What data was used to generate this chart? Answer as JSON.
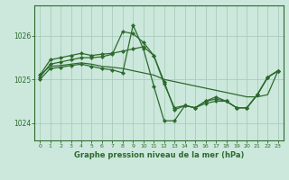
{
  "title": "Graphe pression niveau de la mer (hPa)",
  "bg_color": "#cce8dc",
  "grid_color": "#aaccbb",
  "line_color": "#2d6a2d",
  "xlim": [
    -0.5,
    23.5
  ],
  "ylim": [
    1023.6,
    1026.7
  ],
  "yticks": [
    1024,
    1025,
    1026
  ],
  "xticks": [
    0,
    1,
    2,
    3,
    4,
    5,
    6,
    7,
    8,
    9,
    10,
    11,
    12,
    13,
    14,
    15,
    16,
    17,
    18,
    19,
    20,
    21,
    22,
    23
  ],
  "series": [
    {
      "x": [
        0,
        1,
        2,
        3,
        4,
        5,
        6,
        7,
        8,
        9,
        10,
        11,
        12,
        13,
        14,
        15,
        16,
        17,
        18,
        19,
        20,
        21,
        22,
        23
      ],
      "y": [
        1025.1,
        1025.45,
        1025.5,
        1025.55,
        1025.6,
        1025.55,
        1025.58,
        1025.6,
        1025.65,
        1025.7,
        1025.75,
        1025.55,
        1024.9,
        1024.35,
        1024.4,
        1024.35,
        1024.5,
        1024.6,
        1024.5,
        1024.35,
        1024.35,
        1024.65,
        1025.05,
        1025.2
      ],
      "has_markers": true
    },
    {
      "x": [
        0,
        1,
        2,
        3,
        4,
        5,
        6,
        7,
        8,
        9,
        10,
        11,
        12,
        13,
        14,
        15,
        16,
        17,
        18,
        19,
        20,
        21,
        22,
        23
      ],
      "y": [
        1025.05,
        1025.35,
        1025.4,
        1025.45,
        1025.5,
        1025.5,
        1025.52,
        1025.58,
        1026.1,
        1026.05,
        1025.85,
        1025.55,
        1024.95,
        1024.3,
        1024.4,
        1024.35,
        1024.5,
        1024.55,
        1024.5,
        1024.35,
        1024.35,
        1024.65,
        1025.05,
        1025.2
      ],
      "has_markers": true
    },
    {
      "x": [
        0,
        1,
        2,
        3,
        4,
        5,
        6,
        7,
        8,
        9,
        10,
        11,
        12,
        13,
        14,
        15,
        16,
        17,
        18,
        19,
        20,
        21,
        22,
        23
      ],
      "y": [
        1025.0,
        1025.25,
        1025.28,
        1025.32,
        1025.35,
        1025.3,
        1025.25,
        1025.22,
        1025.15,
        1026.25,
        1025.7,
        1024.85,
        1024.05,
        1024.05,
        1024.4,
        1024.35,
        1024.45,
        1024.5,
        1024.5,
        1024.35,
        1024.35,
        1024.65,
        1025.05,
        1025.2
      ],
      "has_markers": true
    },
    {
      "x": [
        0,
        1,
        2,
        3,
        4,
        5,
        6,
        7,
        8,
        9,
        10,
        11,
        12,
        13,
        14,
        15,
        16,
        17,
        18,
        19,
        20,
        21,
        22,
        23
      ],
      "y": [
        1025.1,
        1025.3,
        1025.32,
        1025.35,
        1025.38,
        1025.35,
        1025.3,
        1025.28,
        1025.25,
        1025.2,
        1025.15,
        1025.1,
        1025.0,
        1024.95,
        1024.9,
        1024.85,
        1024.8,
        1024.75,
        1024.7,
        1024.65,
        1024.6,
        1024.6,
        1024.65,
        1025.2
      ],
      "has_markers": false
    }
  ]
}
